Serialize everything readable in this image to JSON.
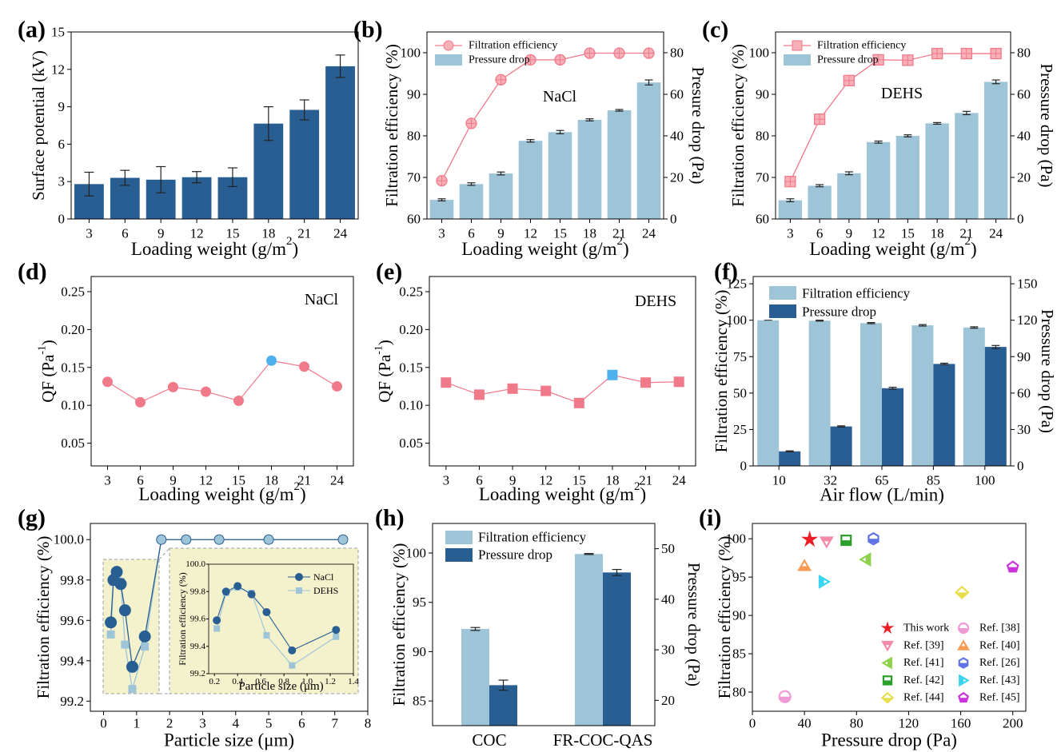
{
  "colors": {
    "dark_blue": "#295e92",
    "light_blue": "#9ec4d8",
    "pink": "#f0798a",
    "pink_fill": "#f7b0b8",
    "highlight_blue": "#4db1ee",
    "inset_bg": "#f4f1cd"
  },
  "chart_data": [
    {
      "id": "a",
      "panel_label": "(a)",
      "type": "bar",
      "categories": [
        "3",
        "6",
        "9",
        "12",
        "15",
        "18",
        "21",
        "24"
      ],
      "series": [
        {
          "values": [
            2.8,
            3.3,
            3.15,
            3.35,
            3.35,
            7.65,
            8.75,
            12.25
          ],
          "errors": [
            0.95,
            0.6,
            1.05,
            0.45,
            0.75,
            1.35,
            0.8,
            0.9
          ]
        }
      ],
      "xlabel": "Loading weight (g/m²)",
      "xlabel_main": "Loading weight (g/m",
      "xlabel_sup": "2",
      "xlabel_end": ")",
      "ylabel": "Surface potential (kV)",
      "ylim": [
        0,
        15
      ],
      "yticks": [
        "0",
        "3",
        "6",
        "9",
        "12",
        "15"
      ],
      "grid": false
    },
    {
      "id": "b",
      "panel_label": "(b)",
      "type": "bar+line",
      "annotation": "NaCl",
      "categories": [
        "3",
        "6",
        "9",
        "12",
        "15",
        "18",
        "21",
        "24"
      ],
      "series": [
        {
          "name": "Filtration efficiency",
          "type": "line",
          "axis": "left",
          "values": [
            69.2,
            83,
            93.5,
            98.3,
            98.3,
            99.9,
            99.9,
            99.9
          ]
        },
        {
          "name": "Pressure drop",
          "type": "bar",
          "axis": "right",
          "values": [
            9.2,
            16.8,
            21.9,
            37.6,
            41.8,
            47.7,
            52.3,
            65.7
          ],
          "errors": [
            0.5,
            0.6,
            0.7,
            0.6,
            0.8,
            0.5,
            0.4,
            1.2
          ]
        }
      ],
      "xlabel_main": "Loading weight (g/m",
      "xlabel_sup": "2",
      "xlabel_end": ")",
      "ylabel_left": "Filtration efficiency (%)",
      "ylabel_right": "Presure drop (Pa)",
      "ylim_left": [
        60,
        105
      ],
      "yticks_left": [
        "60",
        "70",
        "80",
        "90",
        "100"
      ],
      "ylim_right": [
        0,
        90
      ],
      "yticks_right": [
        "0",
        "20",
        "40",
        "60",
        "80"
      ],
      "legend_placement": "top-left"
    },
    {
      "id": "c",
      "panel_label": "(c)",
      "type": "bar+line",
      "annotation": "DEHS",
      "categories": [
        "3",
        "6",
        "9",
        "12",
        "15",
        "18",
        "21",
        "24"
      ],
      "series": [
        {
          "name": "Filtration efficiency",
          "type": "line",
          "axis": "left",
          "values": [
            69,
            84,
            93.3,
            98.3,
            98.2,
            99.8,
            99.8,
            99.8
          ]
        },
        {
          "name": "Pressure drop",
          "type": "bar",
          "axis": "right",
          "values": [
            9,
            16,
            22,
            37,
            40,
            46,
            51,
            66
          ],
          "errors": [
            0.7,
            0.5,
            0.7,
            0.5,
            0.5,
            0.4,
            0.8,
            0.9
          ]
        }
      ],
      "xlabel_main": "Loading weight (g/m",
      "xlabel_sup": "2",
      "xlabel_end": ")",
      "ylabel_left": "Filtration efficiency (%)",
      "ylabel_right": "Pressure drop (Pa)",
      "ylim_left": [
        60,
        105
      ],
      "yticks_left": [
        "60",
        "70",
        "80",
        "90",
        "100"
      ],
      "ylim_right": [
        0,
        90
      ],
      "yticks_right": [
        "0",
        "20",
        "40",
        "60",
        "80"
      ],
      "legend_placement": "top-left"
    },
    {
      "id": "d",
      "panel_label": "(d)",
      "type": "line",
      "annotation": "NaCl",
      "categories": [
        "3",
        "6",
        "9",
        "12",
        "15",
        "18",
        "21",
        "24"
      ],
      "series": [
        {
          "values": [
            0.131,
            0.104,
            0.124,
            0.118,
            0.106,
            0.159,
            0.151,
            0.125
          ],
          "highlight_index": 5
        }
      ],
      "xlabel_main": "Loading weight (g/m",
      "xlabel_sup": "2",
      "xlabel_end": ")",
      "ylabel_main": "QF (Pa",
      "ylabel_sup": "-1",
      "ylabel_end": ")",
      "ylim": [
        0.02,
        0.27
      ],
      "yticks": [
        "0.05",
        "0.10",
        "0.15",
        "0.20",
        "0.25"
      ]
    },
    {
      "id": "e",
      "panel_label": "(e)",
      "type": "line",
      "annotation": "DEHS",
      "categories": [
        "3",
        "6",
        "9",
        "12",
        "15",
        "18",
        "21",
        "24"
      ],
      "series": [
        {
          "values": [
            0.13,
            0.114,
            0.122,
            0.119,
            0.103,
            0.14,
            0.13,
            0.131
          ],
          "highlight_index": 5
        }
      ],
      "xlabel_main": "Loading weight (g/m",
      "xlabel_sup": "2",
      "xlabel_end": ")",
      "ylabel_main": "QF (Pa",
      "ylabel_sup": "-1",
      "ylabel_end": ")",
      "ylim": [
        0.02,
        0.27
      ],
      "yticks": [
        "0.05",
        "0.10",
        "0.15",
        "0.20",
        "0.25"
      ]
    },
    {
      "id": "f",
      "panel_label": "(f)",
      "type": "bar",
      "categories": [
        "10",
        "32",
        "65",
        "85",
        "100"
      ],
      "series": [
        {
          "name": "Filtration efficiency",
          "axis": "left",
          "values": [
            99.99,
            99.7,
            98.0,
            96.5,
            95.0
          ],
          "errors": [
            0,
            0.3,
            0.4,
            0.5,
            0.5
          ]
        },
        {
          "name": "Pressure drop",
          "axis": "right",
          "values": [
            12,
            32.5,
            64,
            84,
            98
          ],
          "errors": [
            0.4,
            0.5,
            0.8,
            0.6,
            1.2
          ]
        }
      ],
      "xlabel": "Air flow (L/min)",
      "ylabel_left": "Filtration efficiency (%)",
      "ylabel_right": "Pressure drop (Pa)",
      "ylim_left": [
        0,
        130
      ],
      "yticks_left": [
        "0",
        "25",
        "50",
        "75",
        "100",
        "125"
      ],
      "ylim_right": [
        0,
        156
      ],
      "yticks_right": [
        "0",
        "30",
        "60",
        "90",
        "120",
        "150"
      ],
      "legend_placement": "top-left"
    },
    {
      "id": "g",
      "panel_label": "(g)",
      "type": "line",
      "series": [
        {
          "name": "NaCl",
          "x": [
            0.22,
            0.3,
            0.4,
            0.52,
            0.65,
            0.87,
            1.25,
            1.75,
            2.5,
            3.5,
            5,
            7.25
          ],
          "y": [
            99.59,
            99.8,
            99.84,
            99.78,
            99.65,
            99.37,
            99.52,
            100,
            100,
            100,
            100,
            100
          ]
        },
        {
          "name": "DEHS",
          "x": [
            0.22,
            0.3,
            0.4,
            0.52,
            0.65,
            0.87,
            1.25,
            1.75,
            2.5,
            3.5,
            5,
            7.25
          ],
          "y": [
            99.53,
            99.79,
            99.83,
            99.79,
            99.48,
            99.26,
            99.47,
            100,
            100,
            100,
            100,
            100
          ]
        }
      ],
      "xlabel": "Particle size (μm)",
      "ylabel": "Filtration efficiency (%)",
      "xlim": [
        -0.4,
        8
      ],
      "xticks": [
        "0",
        "1",
        "2",
        "3",
        "4",
        "5",
        "6",
        "7",
        "8"
      ],
      "ylim": [
        99.15,
        100.08
      ],
      "yticks": [
        "99.2",
        "99.4",
        "99.6",
        "99.8",
        "100.0"
      ],
      "inset": {
        "xlabel": "Particle size (μm)",
        "ylabel": "Filtration efficiency (%)",
        "xticks": [
          "0.2",
          "0.4",
          "0.6",
          "0.8",
          "1.0",
          "1.2",
          "1.4"
        ],
        "yticks": [
          "99.2",
          "99.4",
          "99.6",
          "99.8",
          "100.0"
        ],
        "xlim": [
          0.15,
          1.4
        ],
        "ylim": [
          99.2,
          100.0
        ],
        "legend_placement": "top-right"
      }
    },
    {
      "id": "h",
      "panel_label": "(h)",
      "type": "bar",
      "categories": [
        "COC",
        "FR-COC-QAS"
      ],
      "series": [
        {
          "name": "Filtration efficiency",
          "axis": "left",
          "values": [
            92.3,
            99.9
          ],
          "errors": [
            0.15,
            0.05
          ]
        },
        {
          "name": "Pressure drop",
          "axis": "right",
          "values": [
            23,
            45.3
          ],
          "errors": [
            1.0,
            0.6
          ]
        }
      ],
      "ylabel_left": "Filtration efficiency (%)",
      "ylabel_right": "Pressure drop (Pa)",
      "ylim_left": [
        82.5,
        103
      ],
      "yticks_left": [
        "85",
        "90",
        "95",
        "100"
      ],
      "ylim_right": [
        15,
        55
      ],
      "yticks_right": [
        "20",
        "30",
        "40",
        "50"
      ],
      "legend_placement": "top-left"
    },
    {
      "id": "i",
      "panel_label": "(i)",
      "type": "scatter",
      "series": [
        {
          "name": "This work",
          "x": 44,
          "y": 99.9,
          "marker": "star",
          "color": "#ee1c25"
        },
        {
          "name": "Ref. [38]",
          "x": 25,
          "y": 79.4,
          "marker": "circle",
          "color": "#f09ad6"
        },
        {
          "name": "Ref. [39]",
          "x": 57,
          "y": 99.6,
          "marker": "triangle-down",
          "color": "#f28aa8"
        },
        {
          "name": "Ref. [40]",
          "x": 40,
          "y": 96.5,
          "marker": "triangle-up",
          "color": "#f79b55"
        },
        {
          "name": "Ref. [41]",
          "x": 87,
          "y": 97.3,
          "marker": "triangle-left",
          "color": "#8ed14a"
        },
        {
          "name": "Ref. [26]",
          "x": 93,
          "y": 100,
          "marker": "hexagon",
          "color": "#5f73e6"
        },
        {
          "name": "Ref. [42]",
          "x": 72,
          "y": 99.8,
          "marker": "square",
          "color": "#2aa02a"
        },
        {
          "name": "Ref. [43]",
          "x": 55,
          "y": 94.4,
          "marker": "triangle-right",
          "color": "#38d4f2"
        },
        {
          "name": "Ref. [44]",
          "x": 161,
          "y": 93,
          "marker": "diamond",
          "color": "#e8dd4a"
        },
        {
          "name": "Ref. [45]",
          "x": 200,
          "y": 96.3,
          "marker": "pentagon",
          "color": "#cc33dd"
        }
      ],
      "xlabel": "Pressure drop (Pa)",
      "ylabel": "Filtration efficiency (%)",
      "xlim": [
        0,
        210
      ],
      "xticks": [
        "0",
        "40",
        "80",
        "120",
        "160",
        "200"
      ],
      "ylim": [
        77.5,
        102
      ],
      "yticks": [
        "80",
        "85",
        "90",
        "95",
        "100"
      ],
      "legend_placement": "bottom-right"
    }
  ]
}
